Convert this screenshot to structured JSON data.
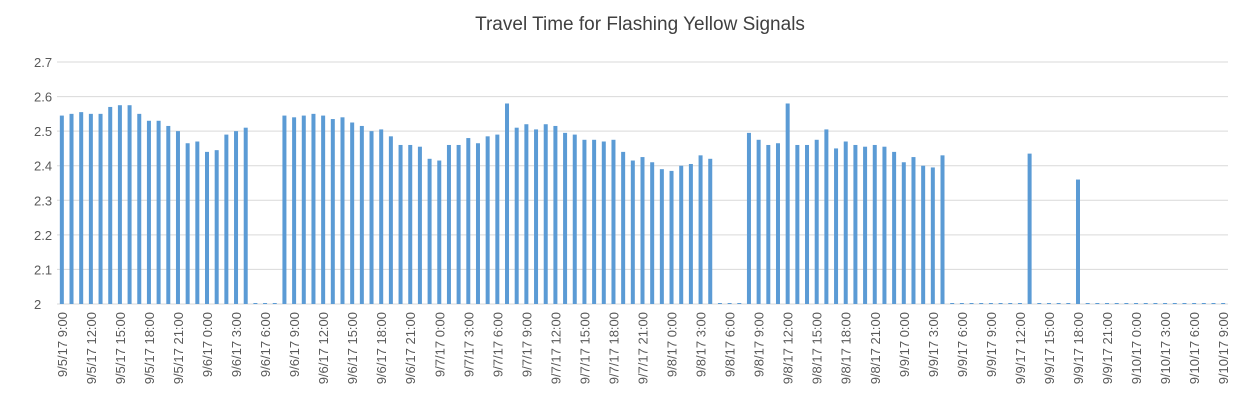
{
  "chart_data": {
    "type": "bar",
    "title": "Travel Time for Flashing Yellow Signals",
    "categories": [
      "9/5/17 9:00",
      null,
      null,
      "9/5/17 12:00",
      null,
      null,
      "9/5/17 15:00",
      null,
      null,
      "9/5/17 18:00",
      null,
      null,
      "9/5/17 21:00",
      null,
      null,
      "9/6/17 0:00",
      null,
      null,
      "9/6/17 3:00",
      null,
      null,
      "9/6/17 6:00",
      null,
      null,
      "9/6/17 9:00",
      null,
      null,
      "9/6/17 12:00",
      null,
      null,
      "9/6/17 15:00",
      null,
      null,
      "9/6/17 18:00",
      null,
      null,
      "9/6/17 21:00",
      null,
      null,
      "9/7/17 0:00",
      null,
      null,
      "9/7/17 3:00",
      null,
      null,
      "9/7/17 6:00",
      null,
      null,
      "9/7/17 9:00",
      null,
      null,
      "9/7/17 12:00",
      null,
      null,
      "9/7/17 15:00",
      null,
      null,
      "9/7/17 18:00",
      null,
      null,
      "9/7/17 21:00",
      null,
      null,
      "9/8/17 0:00",
      null,
      null,
      "9/8/17 3:00",
      null,
      null,
      "9/8/17 6:00",
      null,
      null,
      "9/8/17 9:00",
      null,
      null,
      "9/8/17 12:00",
      null,
      null,
      "9/8/17 15:00",
      null,
      null,
      "9/8/17 18:00",
      null,
      null,
      "9/8/17 21:00",
      null,
      null,
      "9/9/17 0:00",
      null,
      null,
      "9/9/17 3:00",
      null,
      null,
      "9/9/17 6:00",
      null,
      null,
      "9/9/17 9:00",
      null,
      null,
      "9/9/17 12:00",
      null,
      null,
      "9/9/17 15:00",
      null,
      null,
      "9/9/17 18:00",
      null,
      null,
      "9/9/17 21:00",
      null,
      null,
      "9/10/17 0:00",
      null,
      null,
      "9/10/17 3:00",
      null,
      null,
      "9/10/17 6:00",
      null,
      null,
      "9/10/17 9:00"
    ],
    "values": [
      2.545,
      2.55,
      2.555,
      2.55,
      2.55,
      2.57,
      2.575,
      2.575,
      2.55,
      2.53,
      2.53,
      2.515,
      2.5,
      2.465,
      2.47,
      2.44,
      2.445,
      2.49,
      2.5,
      2.51,
      2,
      2,
      2,
      2.545,
      2.54,
      2.545,
      2.55,
      2.545,
      2.535,
      2.54,
      2.525,
      2.515,
      2.5,
      2.505,
      2.485,
      2.46,
      2.46,
      2.455,
      2.42,
      2.415,
      2.46,
      2.46,
      2.48,
      2.465,
      2.485,
      2.49,
      2.58,
      2.51,
      2.52,
      2.505,
      2.52,
      2.515,
      2.495,
      2.49,
      2.475,
      2.475,
      2.47,
      2.475,
      2.44,
      2.415,
      2.425,
      2.41,
      2.39,
      2.385,
      2.4,
      2.405,
      2.43,
      2.42,
      2,
      2,
      2,
      2.495,
      2.475,
      2.46,
      2.465,
      2.58,
      2.46,
      2.46,
      2.475,
      2.505,
      2.45,
      2.47,
      2.46,
      2.455,
      2.46,
      2.455,
      2.44,
      2.41,
      2.425,
      2.4,
      2.395,
      2.43,
      2,
      2,
      2,
      2,
      2,
      2,
      2,
      2,
      2.435,
      2,
      2,
      2,
      2,
      2.36,
      2,
      2,
      2,
      2,
      2,
      2,
      2,
      2,
      2,
      2,
      2,
      2,
      2,
      2,
      2
    ],
    "color": "#5b9bd5",
    "ylim": [
      2,
      2.7
    ],
    "yticks": [
      2,
      2.1,
      2.2,
      2.3,
      2.4,
      2.5,
      2.6,
      2.7
    ],
    "grid": true
  }
}
